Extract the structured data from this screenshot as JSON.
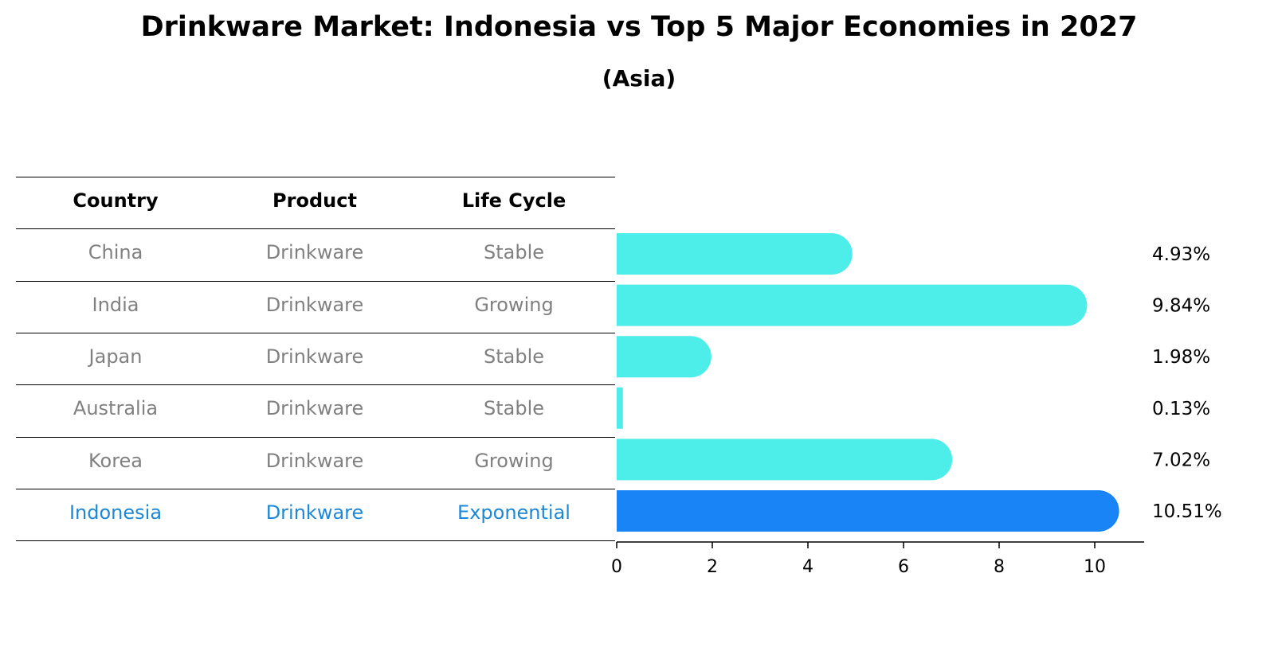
{
  "title": "Drinkware Market: Indonesia vs Top 5 Major Economies in 2027",
  "subtitle": "(Asia)",
  "table": {
    "headers": [
      "Country",
      "Product",
      "Life Cycle"
    ],
    "rows": [
      {
        "country": "China",
        "product": "Drinkware",
        "life_cycle": "Stable"
      },
      {
        "country": "India",
        "product": "Drinkware",
        "life_cycle": "Growing"
      },
      {
        "country": "Japan",
        "product": "Drinkware",
        "life_cycle": "Stable"
      },
      {
        "country": "Australia",
        "product": "Drinkware",
        "life_cycle": "Stable"
      },
      {
        "country": "Korea",
        "product": "Drinkware",
        "life_cycle": "Growing"
      },
      {
        "country": "Indonesia",
        "product": "Drinkware",
        "life_cycle": "Exponential"
      }
    ]
  },
  "colors": {
    "bar": "#4deeea",
    "highlight_bar": "#1984f5",
    "highlight_text": "#1e88d6",
    "muted_text": "#808080"
  },
  "chart_data": {
    "type": "bar",
    "orientation": "horizontal",
    "categories": [
      "China",
      "India",
      "Japan",
      "Australia",
      "Korea",
      "Indonesia"
    ],
    "values": [
      4.93,
      9.84,
      1.98,
      0.13,
      7.02,
      10.51
    ],
    "value_labels": [
      "4.93%",
      "9.84%",
      "1.98%",
      "0.13%",
      "7.02%",
      "10.51%"
    ],
    "highlight": "Indonesia",
    "xlim": [
      0,
      11
    ],
    "xticks": [
      0,
      2,
      4,
      6,
      8,
      10
    ],
    "grid": false
  }
}
